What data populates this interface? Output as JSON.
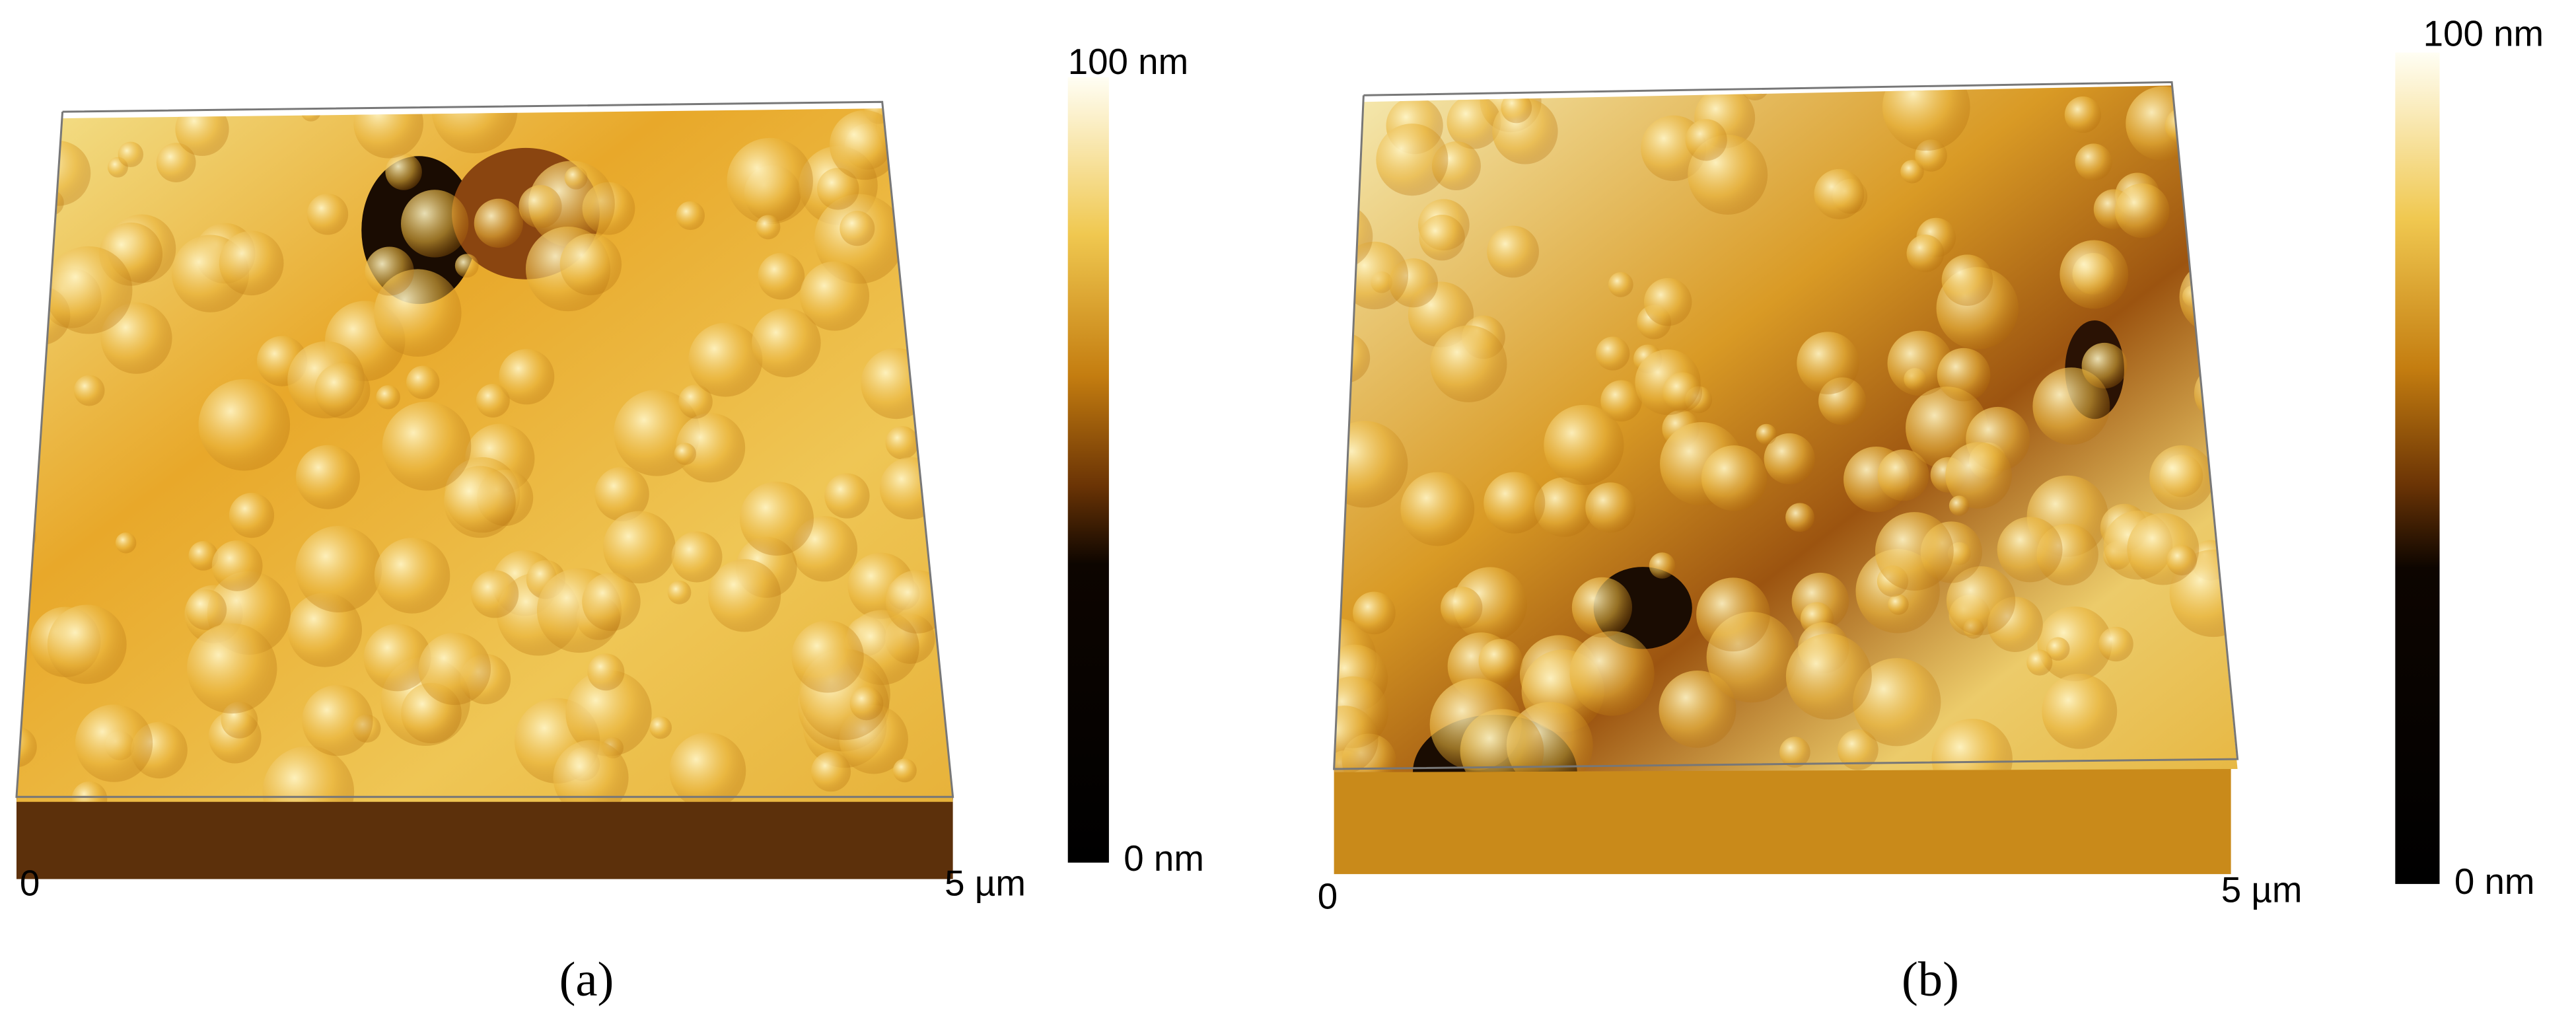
{
  "panels": [
    {
      "label": "(a)",
      "x_start": "0",
      "x_end": "5 µm",
      "colorbar_max": "100 nm",
      "colorbar_min": "0 nm"
    },
    {
      "label": "(b)",
      "x_start": "0",
      "x_end": "5 µm",
      "colorbar_max": "100 nm",
      "colorbar_min": "0 nm"
    }
  ]
}
